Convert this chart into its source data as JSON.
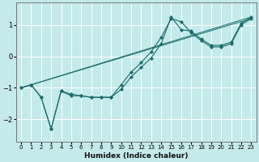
{
  "xlabel": "Humidex (Indice chaleur)",
  "background_color": "#c5eaea",
  "grid_color": "#ffffff",
  "line_color": "#1a6b6b",
  "xlim": [
    -0.5,
    23.5
  ],
  "ylim": [
    -2.7,
    1.7
  ],
  "yticks": [
    -2,
    -1,
    0,
    1
  ],
  "xticks": [
    0,
    1,
    2,
    3,
    4,
    5,
    6,
    7,
    8,
    9,
    10,
    11,
    12,
    13,
    14,
    15,
    16,
    17,
    18,
    19,
    20,
    21,
    22,
    23
  ],
  "series_marked": [
    {
      "x": [
        0,
        1,
        2,
        3,
        4,
        5,
        6,
        7,
        8,
        9,
        10,
        11,
        12,
        13,
        14,
        15,
        16,
        17,
        18,
        19,
        20,
        21,
        22,
        23
      ],
      "y": [
        -1.0,
        -0.9,
        -1.3,
        -2.3,
        -1.1,
        -1.2,
        -1.25,
        -1.3,
        -1.3,
        -1.3,
        -1.05,
        -0.65,
        -0.35,
        -0.05,
        0.4,
        1.25,
        0.85,
        0.8,
        0.55,
        0.35,
        0.35,
        0.45,
        1.05,
        1.25
      ]
    },
    {
      "x": [
        0,
        1,
        2,
        3,
        4,
        5,
        6,
        7,
        8,
        9,
        10,
        11,
        12,
        13,
        14,
        15,
        16,
        17,
        18,
        19,
        20,
        21,
        22,
        23
      ],
      "y": [
        -1.0,
        -0.9,
        -1.3,
        -2.3,
        -1.1,
        -1.25,
        -1.25,
        -1.3,
        -1.3,
        -1.3,
        -0.9,
        -0.5,
        -0.2,
        0.15,
        0.6,
        1.2,
        1.1,
        0.75,
        0.5,
        0.3,
        0.3,
        0.4,
        1.0,
        1.2
      ]
    }
  ],
  "series_trend": [
    {
      "x": [
        0,
        23
      ],
      "y": [
        -1.0,
        1.25
      ]
    },
    {
      "x": [
        0,
        23
      ],
      "y": [
        -1.0,
        1.2
      ]
    }
  ]
}
